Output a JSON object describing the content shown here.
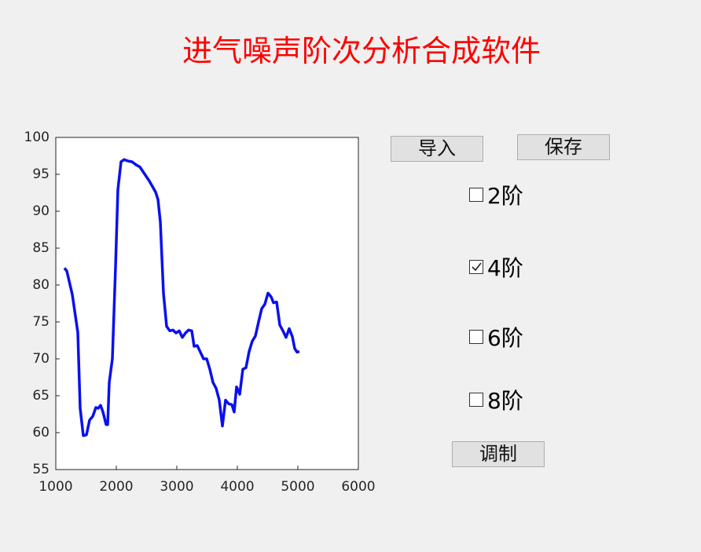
{
  "title": "进气噪声阶次分析合成软件",
  "buttons": [
    "导入",
    "保存",
    "调制"
  ],
  "checkboxes": [
    {
      "label": "2阶",
      "checked": false
    },
    {
      "label": "4阶",
      "checked": true
    },
    {
      "label": "6阶",
      "checked": false
    },
    {
      "label": "8阶",
      "checked": false
    }
  ],
  "chart_data": {
    "type": "line",
    "color": "#0a10ee",
    "x": [
      1143,
      1182,
      1273,
      1364,
      1403,
      1455,
      1506,
      1558,
      1610,
      1662,
      1701,
      1740,
      1779,
      1831,
      1857,
      1883,
      1935,
      1987,
      2026,
      2078,
      2130,
      2195,
      2260,
      2325,
      2390,
      2455,
      2545,
      2649,
      2688,
      2727,
      2779,
      2831,
      2883,
      2935,
      2987,
      3039,
      3091,
      3143,
      3195,
      3247,
      3286,
      3338,
      3390,
      3442,
      3494,
      3545,
      3597,
      3649,
      3701,
      3753,
      3805,
      3857,
      3909,
      3948,
      3987,
      4039,
      4091,
      4143,
      4195,
      4247,
      4299,
      4351,
      4403,
      4455,
      4506,
      4558,
      4597,
      4649,
      4701,
      4753,
      4805,
      4857,
      4909,
      4948,
      4987,
      5026
    ],
    "values": [
      82.3,
      81.9,
      78.7,
      73.6,
      63.3,
      59.6,
      59.7,
      61.7,
      62.2,
      63.4,
      63.3,
      63.7,
      62.8,
      61.1,
      61.1,
      66.8,
      70.0,
      82.4,
      92.9,
      96.7,
      97.0,
      96.8,
      96.7,
      96.3,
      96.0,
      95.2,
      94.1,
      92.6,
      91.6,
      88.6,
      78.9,
      74.4,
      73.8,
      73.9,
      73.5,
      73.8,
      72.9,
      73.5,
      73.9,
      73.8,
      71.7,
      71.8,
      70.9,
      70.0,
      70.0,
      68.6,
      66.8,
      66.0,
      64.4,
      60.9,
      64.4,
      63.9,
      63.8,
      62.8,
      66.2,
      65.2,
      68.6,
      68.8,
      71.0,
      72.4,
      73.1,
      75.0,
      76.8,
      77.4,
      78.9,
      78.4,
      77.6,
      77.7,
      74.6,
      73.8,
      72.9,
      74.1,
      73.0,
      71.4,
      70.9,
      71.0
    ],
    "xlim": [
      1000,
      6000
    ],
    "xticks": [
      1000,
      2000,
      3000,
      4000,
      5000,
      6000
    ],
    "ylim": [
      55,
      100
    ],
    "yticks": [
      55,
      60,
      65,
      70,
      75,
      80,
      85,
      90,
      95,
      100
    ]
  }
}
